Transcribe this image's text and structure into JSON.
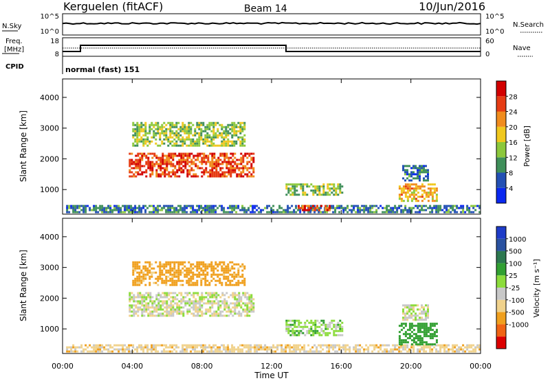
{
  "header": {
    "station": "Kerguelen (fitACF)",
    "beam": "Beam 14",
    "date": "10/Jun/2016"
  },
  "noise_panel": {
    "left_label": "N.Sky",
    "left_ticks": [
      "10^5",
      "10^0"
    ],
    "right_label": "N.Search",
    "right_ticks": [
      "10^5",
      "10^0"
    ]
  },
  "freq_panel": {
    "left_label_1": "Freq.",
    "left_label_2": "[MHz]",
    "left_ticks": [
      "18",
      "8"
    ],
    "right_label": "Nave",
    "right_ticks": [
      "60",
      "0"
    ]
  },
  "cpid_panel": {
    "label": "CPID",
    "text": "normal (fast) 151"
  },
  "colors": {
    "power_scale": [
      "#0a28f0",
      "#2350b4",
      "#3f8f5a",
      "#8cc83c",
      "#f0c81e",
      "#f08c1e",
      "#e63c14",
      "#d20000"
    ],
    "velocity_scale": [
      "#dc0000",
      "#f06414",
      "#f0a01e",
      "#f0d28c",
      "#c8c8c8",
      "#8cdc3c",
      "#32a032",
      "#2d7850",
      "#2a52a0",
      "#1e3cc8"
    ]
  },
  "chart_data": [
    {
      "type": "heatmap",
      "name": "power",
      "xlabel": "Time UT",
      "ylabel": "Slant Range [km]",
      "xlim": [
        0,
        24
      ],
      "ylim": [
        200,
        4600
      ],
      "x_tick_labels": [
        "00:00",
        "04:00",
        "08:00",
        "12:00",
        "16:00",
        "20:00",
        "00:00"
      ],
      "y_tick_labels": [
        "1000",
        "2000",
        "3000",
        "4000"
      ],
      "colorbar": {
        "label": "Power [dB]",
        "tick_labels": [
          "4",
          "8",
          "12",
          "16",
          "20",
          "24",
          "28"
        ],
        "range": [
          0,
          32
        ]
      },
      "regions": [
        {
          "t": [
            3.8,
            11.0
          ],
          "r": [
            1400,
            2200
          ],
          "level": 26
        },
        {
          "t": [
            4.0,
            10.5
          ],
          "r": [
            2400,
            3200
          ],
          "level": 14
        },
        {
          "t": [
            0.2,
            24.0
          ],
          "r": [
            250,
            500
          ],
          "level": 8
        },
        {
          "t": [
            12.8,
            16.0
          ],
          "r": [
            800,
            1200
          ],
          "level": 14
        },
        {
          "t": [
            13.5,
            15.5
          ],
          "r": [
            350,
            500
          ],
          "level": 27
        },
        {
          "t": [
            19.3,
            21.5
          ],
          "r": [
            600,
            1200
          ],
          "level": 20
        },
        {
          "t": [
            19.5,
            21.0
          ],
          "r": [
            1300,
            1800
          ],
          "level": 8
        }
      ]
    },
    {
      "type": "heatmap",
      "name": "velocity",
      "xlabel": "Time UT",
      "ylabel": "Slant Range [km]",
      "xlim": [
        0,
        24
      ],
      "ylim": [
        200,
        4600
      ],
      "x_tick_labels": [
        "00:00",
        "04:00",
        "08:00",
        "12:00",
        "16:00",
        "20:00",
        "00:00"
      ],
      "y_tick_labels": [
        "1000",
        "2000",
        "3000",
        "4000"
      ],
      "colorbar": {
        "label": "Velocity [m s⁻¹]",
        "tick_labels": [
          "1000",
          "500",
          "100",
          "25",
          "-25",
          "-100",
          "-500",
          "-1000"
        ]
      },
      "regions": [
        {
          "t": [
            3.8,
            11.0
          ],
          "r": [
            1400,
            2200
          ],
          "velocity": 0
        },
        {
          "t": [
            4.0,
            10.5
          ],
          "r": [
            2400,
            3200
          ],
          "velocity": -150
        },
        {
          "t": [
            0.2,
            24.0
          ],
          "r": [
            250,
            500
          ],
          "velocity": -60
        },
        {
          "t": [
            12.8,
            16.0
          ],
          "r": [
            800,
            1300
          ],
          "velocity": 60
        },
        {
          "t": [
            19.3,
            21.5
          ],
          "r": [
            500,
            1200
          ],
          "velocity": 200
        },
        {
          "t": [
            19.5,
            21.0
          ],
          "r": [
            1300,
            1800
          ],
          "velocity": 0
        }
      ]
    }
  ]
}
